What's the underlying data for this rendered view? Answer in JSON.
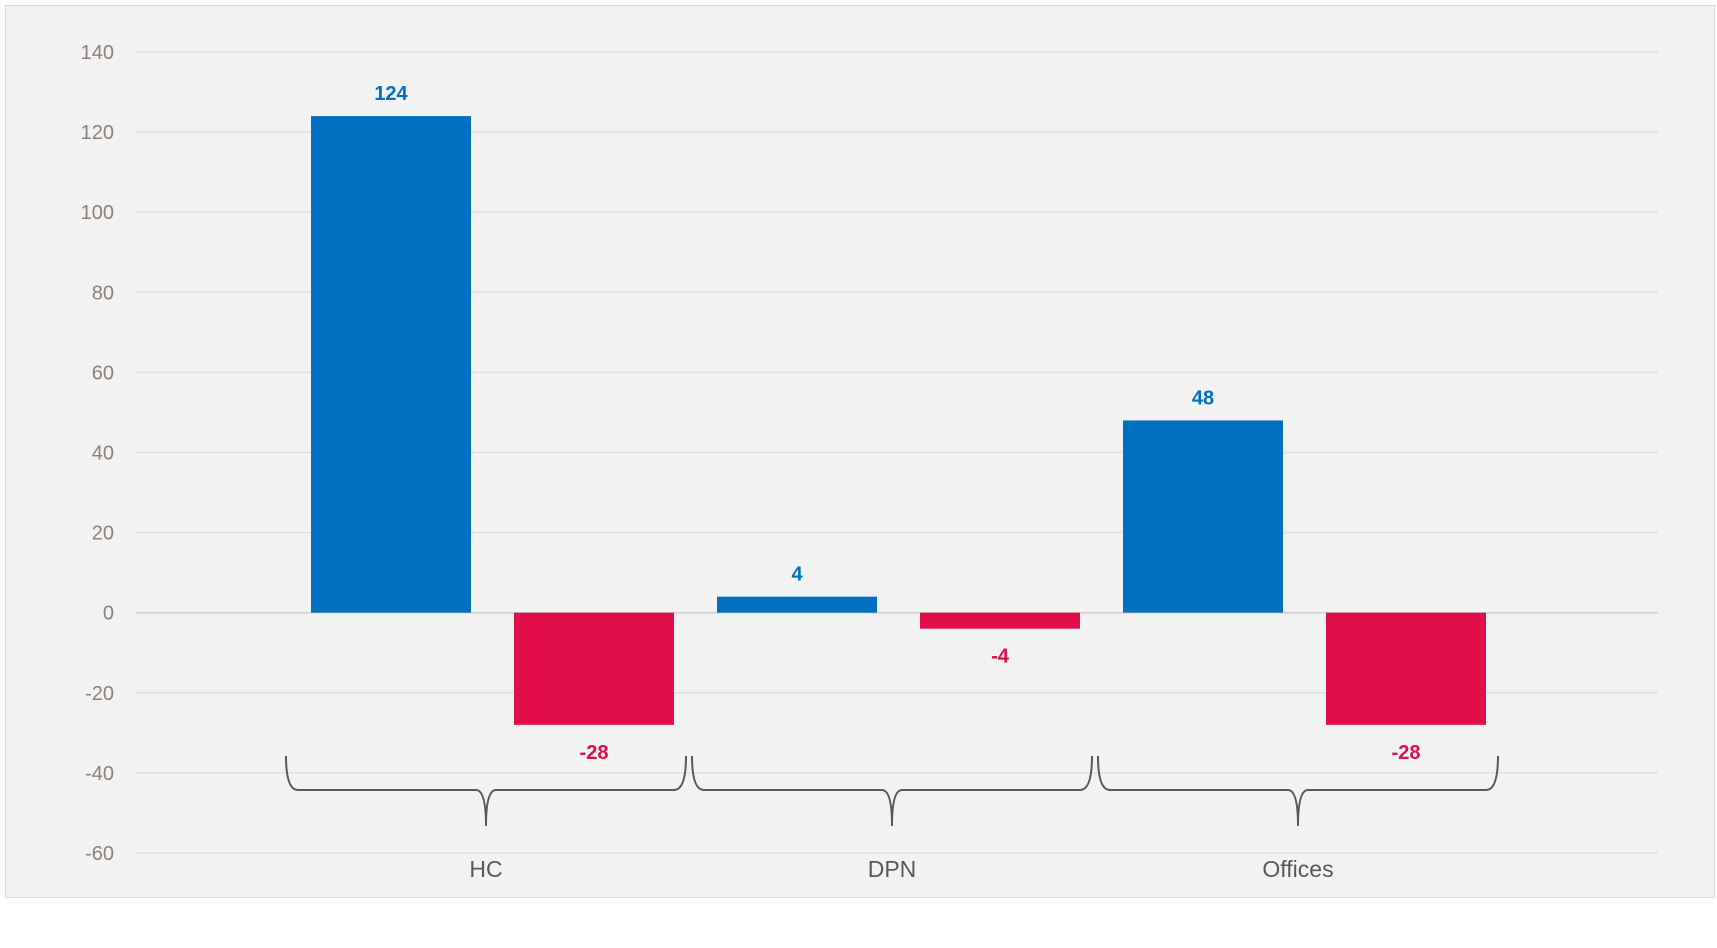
{
  "chart_data": {
    "type": "bar",
    "categories": [
      "HC",
      "DPN",
      "Offices"
    ],
    "series": [
      {
        "values": [
          124,
          4,
          48
        ],
        "color": "#0070c0"
      },
      {
        "values": [
          -28,
          -4,
          -28
        ],
        "color": "#e20e4a"
      }
    ],
    "y_ticks": [
      "140",
      "120",
      "100",
      "80",
      "60",
      "40",
      "20",
      "0",
      "-20",
      "-40",
      "-60"
    ],
    "data_labels": [
      [
        "124",
        "4",
        "48"
      ],
      [
        "-28",
        "-4",
        "-28"
      ]
    ],
    "ylim": [
      -60,
      140
    ],
    "grid": true,
    "legend": "none",
    "title": "",
    "xlabel": "",
    "ylabel": ""
  }
}
